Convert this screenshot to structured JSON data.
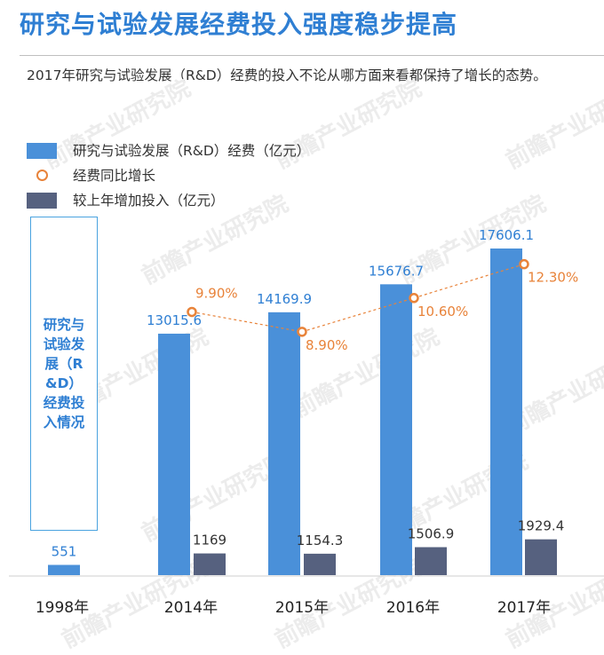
{
  "title": "研究与试验发展经费投入强度稳步提高",
  "subtitle": "2017年研究与试验发展（R&D）经费的投入不论从哪方面来看都保持了增长的态势。",
  "watermark": "前瞻产业研究院",
  "colors": {
    "title": "#2f7fd3",
    "bar_main": "#4a90d9",
    "bar_increase": "#56617f",
    "growth": "#e8833a",
    "label_main": "#2f7fd3",
    "label_increase": "#333333"
  },
  "chart_data": {
    "type": "bar",
    "categories": [
      "1998年",
      "2014年",
      "2015年",
      "2016年",
      "2017年"
    ],
    "series": [
      {
        "name": "研究与试验发展（R&D）经费（亿元）",
        "kind": "bar",
        "values": [
          551,
          13015.6,
          14169.9,
          15676.7,
          17606.1
        ],
        "labels": [
          "551",
          "13015.6",
          "14169.9",
          "15676.7",
          "17606.1"
        ]
      },
      {
        "name": "经费同比增长",
        "kind": "line-dashed",
        "values": [
          null,
          9.9,
          8.9,
          10.6,
          12.3
        ],
        "labels": [
          "",
          "9.90%",
          "8.90%",
          "10.60%",
          "12.30%"
        ]
      },
      {
        "name": "较上年增加投入（亿元）",
        "kind": "bar",
        "values": [
          null,
          1169,
          1154.3,
          1506.9,
          1929.4
        ],
        "labels": [
          "",
          "1169",
          "1154.3",
          "1506.9",
          "1929.4"
        ]
      }
    ],
    "ylabel": "研究与试验发展（R&D）经费投入情况",
    "ylim": [
      0,
      17606.1
    ],
    "grid": false,
    "legend_position": "top-left"
  }
}
